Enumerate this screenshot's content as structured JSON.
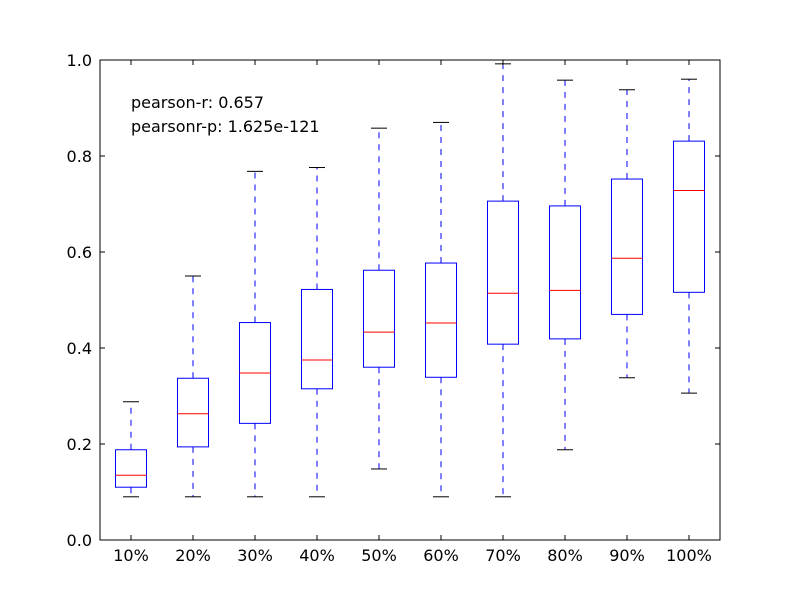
{
  "chart_data": {
    "type": "box",
    "categories": [
      "10%",
      "20%",
      "30%",
      "40%",
      "50%",
      "60%",
      "70%",
      "80%",
      "90%",
      "100%"
    ],
    "boxes": [
      {
        "whisker_low": 0.09,
        "q1": 0.11,
        "median": 0.135,
        "q3": 0.188,
        "whisker_high": 0.288
      },
      {
        "whisker_low": 0.09,
        "q1": 0.194,
        "median": 0.263,
        "q3": 0.337,
        "whisker_high": 0.55
      },
      {
        "whisker_low": 0.09,
        "q1": 0.243,
        "median": 0.348,
        "q3": 0.453,
        "whisker_high": 0.768
      },
      {
        "whisker_low": 0.09,
        "q1": 0.315,
        "median": 0.375,
        "q3": 0.522,
        "whisker_high": 0.776
      },
      {
        "whisker_low": 0.148,
        "q1": 0.36,
        "median": 0.433,
        "q3": 0.562,
        "whisker_high": 0.858
      },
      {
        "whisker_low": 0.09,
        "q1": 0.339,
        "median": 0.452,
        "q3": 0.577,
        "whisker_high": 0.87
      },
      {
        "whisker_low": 0.09,
        "q1": 0.408,
        "median": 0.514,
        "q3": 0.706,
        "whisker_high": 0.992
      },
      {
        "whisker_low": 0.188,
        "q1": 0.419,
        "median": 0.52,
        "q3": 0.696,
        "whisker_high": 0.958
      },
      {
        "whisker_low": 0.338,
        "q1": 0.47,
        "median": 0.587,
        "q3": 0.752,
        "whisker_high": 0.938
      },
      {
        "whisker_low": 0.306,
        "q1": 0.516,
        "median": 0.728,
        "q3": 0.831,
        "whisker_high": 0.96
      }
    ],
    "ylim": [
      0.0,
      1.0
    ],
    "yticks": [
      0.0,
      0.2,
      0.4,
      0.6,
      0.8,
      1.0
    ],
    "ytick_labels": [
      "0.0",
      "0.2",
      "0.4",
      "0.6",
      "0.8",
      "1.0"
    ],
    "annotations": [
      "pearson-r: 0.657",
      "pearsonr-p: 1.625e-121"
    ],
    "grid": false,
    "colors": {
      "box": "#0000ff",
      "median": "#ff0000",
      "cap": "#000000",
      "axes": "#000000"
    }
  }
}
